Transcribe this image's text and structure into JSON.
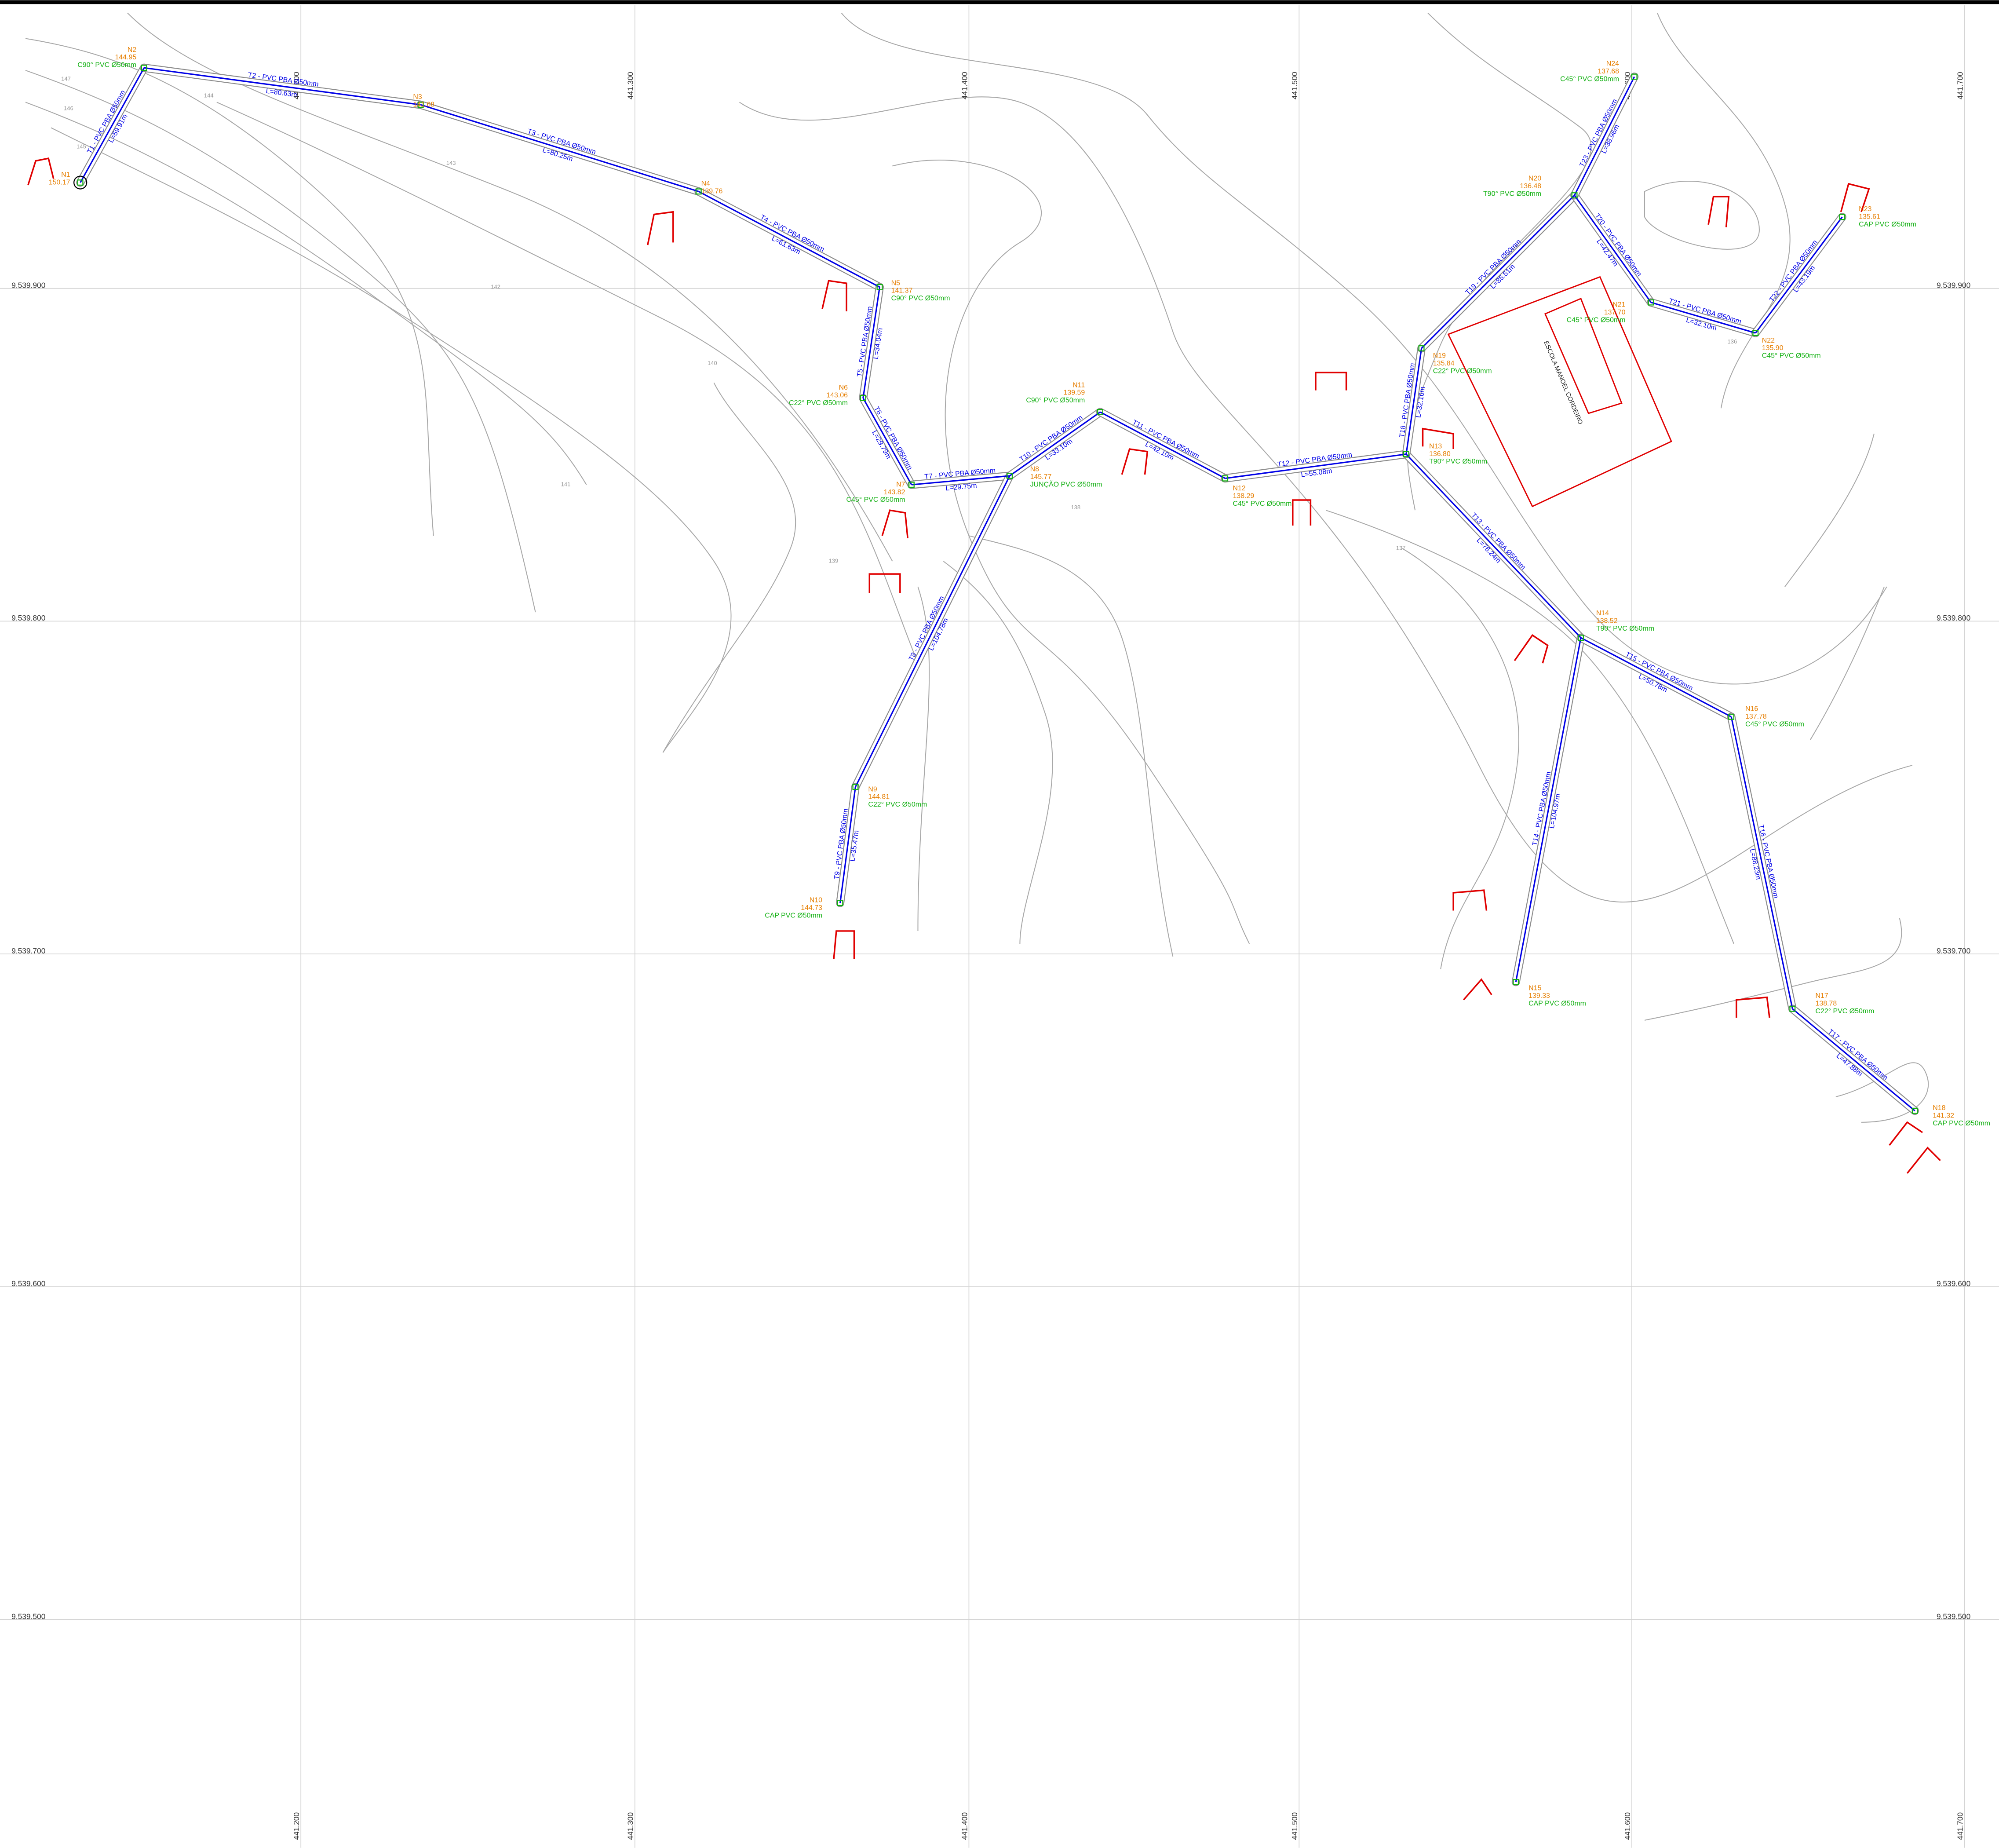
{
  "grid": {
    "x_labels": [
      "441.200",
      "441.300",
      "441.400",
      "441.500",
      "441.600",
      "441.700"
    ],
    "y_labels": [
      "9.539.900",
      "9.539.800",
      "9.539.700",
      "9.539.600",
      "9.539.500"
    ]
  },
  "building": "ESCOLA MANOEL CORDEIRO",
  "nodes": [
    {
      "id": "N1",
      "elevation": "150.17"
    },
    {
      "id": "N2",
      "elevation": "144.95",
      "fitting": "C90° PVC Ø50mm"
    },
    {
      "id": "N3",
      "elevation": "141.68"
    },
    {
      "id": "N4",
      "elevation": "139.76"
    },
    {
      "id": "N5",
      "elevation": "141.37",
      "fitting": "C90° PVC Ø50mm"
    },
    {
      "id": "N6",
      "elevation": "143.06",
      "fitting": "C22° PVC Ø50mm"
    },
    {
      "id": "N7",
      "elevation": "143.82",
      "fitting": "C45° PVC Ø50mm"
    },
    {
      "id": "N8",
      "elevation": "145.77",
      "fitting": "JUNÇÃO PVC Ø50mm"
    },
    {
      "id": "N9",
      "elevation": "144.81",
      "fitting": "C22° PVC Ø50mm"
    },
    {
      "id": "N10",
      "elevation": "144.73",
      "fitting": "CAP PVC Ø50mm"
    },
    {
      "id": "N11",
      "elevation": "139.59",
      "fitting": "C90° PVC Ø50mm"
    },
    {
      "id": "N12",
      "elevation": "138.29",
      "fitting": "C45° PVC Ø50mm"
    },
    {
      "id": "N13",
      "elevation": "136.80",
      "fitting": "T90° PVC Ø50mm"
    },
    {
      "id": "N14",
      "elevation": "138.52",
      "fitting": "T90° PVC Ø50mm"
    },
    {
      "id": "N15",
      "elevation": "139.33",
      "fitting": "CAP PVC Ø50mm"
    },
    {
      "id": "N16",
      "elevation": "137.78",
      "fitting": "C45° PVC Ø50mm"
    },
    {
      "id": "N17",
      "elevation": "138.78",
      "fitting": "C22° PVC Ø50mm"
    },
    {
      "id": "N18",
      "elevation": "141.32",
      "fitting": "CAP PVC Ø50mm"
    },
    {
      "id": "N19",
      "elevation": "135.84",
      "fitting": "C22° PVC Ø50mm"
    },
    {
      "id": "N20",
      "elevation": "136.48",
      "fitting": "T90° PVC Ø50mm"
    },
    {
      "id": "N21",
      "elevation": "137.70",
      "fitting": "C45° PVC Ø50mm"
    },
    {
      "id": "N22",
      "elevation": "135.90",
      "fitting": "C45° PVC Ø50mm"
    },
    {
      "id": "N23",
      "elevation": "135.61",
      "fitting": "CAP PVC Ø50mm"
    },
    {
      "id": "N24",
      "elevation": "137.68",
      "fitting": "C45° PVC Ø50mm"
    }
  ],
  "pipes": [
    {
      "label": "T1 - PVC PBA Ø50mm",
      "length": "L=59.91m"
    },
    {
      "label": "T2 - PVC PBA Ø50mm",
      "length": "L=80.63m"
    },
    {
      "label": "T3 - PVC PBA Ø50mm",
      "length": "L=80.25m"
    },
    {
      "label": "T4 - PVC PBA Ø50mm",
      "length": "L=61.63m"
    },
    {
      "label": "T5 - PVC PBA Ø50mm",
      "length": "L=34.04m"
    },
    {
      "label": "T6 - PVC PBA Ø50mm",
      "length": "L=29.79m"
    },
    {
      "label": "T7 - PVC PBA Ø50mm",
      "length": "L=29.75m"
    },
    {
      "label": "T8 - PVC PBA Ø50mm",
      "length": "L=104.78m"
    },
    {
      "label": "T9 - PVC PBA Ø50mm",
      "length": "L=35.47m"
    },
    {
      "label": "T10 - PVC PBA Ø50mm",
      "length": "L=33.10m"
    },
    {
      "label": "T11 - PVC PBA Ø50mm",
      "length": "L=42.10m"
    },
    {
      "label": "T12 - PVC PBA Ø50mm",
      "length": "L=55.08m"
    },
    {
      "label": "T13 - PVC PBA Ø50mm",
      "length": "L=76.24m"
    },
    {
      "label": "T14 - PVC PBA Ø50mm",
      "length": "L=104.97m"
    },
    {
      "label": "T15 - PVC PBA Ø50mm",
      "length": "L=50.78m"
    },
    {
      "label": "T16 - PVC PBA Ø50mm",
      "length": "L=88.23m"
    },
    {
      "label": "T17 - PVC PBA Ø50mm",
      "length": "L=47.88m"
    },
    {
      "label": "T18 - PVC PBA Ø50mm",
      "length": "L=32.16m"
    },
    {
      "label": "T19 - PVC PBA Ø50mm",
      "length": "L=85.51m"
    },
    {
      "label": "T20 - PVC PBA Ø50mm",
      "length": "L=42.47m"
    },
    {
      "label": "T21 - PVC PBA Ø50mm",
      "length": "L=32.10m"
    },
    {
      "label": "T22 - PVC PBA Ø50mm",
      "length": "L=43.19m"
    },
    {
      "label": "T23 - PVC PBA Ø50mm",
      "length": "L=38.96m"
    }
  ],
  "contour_labels": [
    "147",
    "146",
    "145",
    "144",
    "143",
    "142",
    "141",
    "140",
    "139",
    "138",
    "137",
    "136"
  ]
}
